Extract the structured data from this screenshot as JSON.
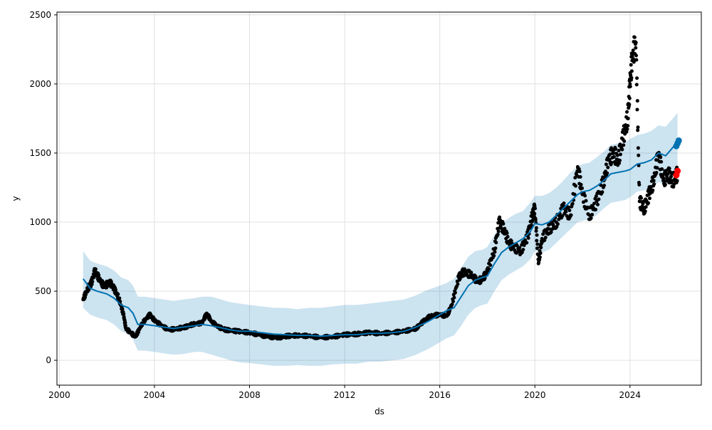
{
  "chart_data": {
    "type": "line",
    "title": "",
    "xlabel": "ds",
    "ylabel": "y",
    "xlim": [
      1999.9,
      2027.0
    ],
    "ylim": [
      -180,
      2520
    ],
    "grid": true,
    "x_ticks": [
      2000,
      2004,
      2008,
      2012,
      2016,
      2020,
      2024
    ],
    "x_tick_labels": [
      "2000",
      "2004",
      "2008",
      "2012",
      "2016",
      "2020",
      "2024"
    ],
    "y_ticks": [
      0,
      500,
      1000,
      1500,
      2000,
      2500
    ],
    "y_tick_labels": [
      "0",
      "500",
      "1000",
      "1500",
      "2000",
      "2500"
    ],
    "colors": {
      "forecast": "#0072B2",
      "interval": "#0072B2",
      "observed": "#000000",
      "actual_marker": "#ff0000",
      "grid": "#e0e0e0"
    },
    "series": [
      {
        "type": "observed",
        "x": [
          2001.0,
          2001.2,
          2001.35,
          2001.5,
          2001.7,
          2001.9,
          2002.1,
          2002.3,
          2002.5,
          2002.7,
          2002.8,
          2003.0,
          2003.2,
          2003.5,
          2003.8,
          2004.0,
          2004.3,
          2004.6,
          2005.0,
          2005.3,
          2005.6,
          2006.0,
          2006.2,
          2006.4,
          2006.7,
          2007.0,
          2007.5,
          2008.0,
          2008.4,
          2008.8,
          2009.2,
          2009.6,
          2010.0,
          2010.5,
          2011.0,
          2011.5,
          2012.0,
          2012.5,
          2013.0,
          2013.5,
          2014.0,
          2014.5,
          2015.0,
          2015.3,
          2015.6,
          2016.0,
          2016.3,
          2016.5,
          2016.8,
          2017.0,
          2017.3,
          2017.6,
          2017.8,
          2018.0,
          2018.3,
          2018.5,
          2018.7,
          2018.9,
          2019.1,
          2019.4,
          2019.7,
          2019.9,
          2020.0,
          2020.15,
          2020.3,
          2020.6,
          2020.9,
          2021.2,
          2021.5,
          2021.8,
          2022.0,
          2022.3,
          2022.6,
          2022.9,
          2023.1,
          2023.3,
          2023.5,
          2023.7,
          2023.9,
          2024.0,
          2024.1,
          2024.25,
          2024.4,
          2024.6,
          2024.8,
          2025.0,
          2025.2,
          2025.4,
          2025.6,
          2025.8,
          2026.0
        ],
        "y": [
          440,
          520,
          560,
          650,
          580,
          530,
          570,
          520,
          450,
          330,
          230,
          200,
          170,
          270,
          330,
          290,
          250,
          220,
          230,
          240,
          260,
          270,
          340,
          280,
          240,
          220,
          210,
          200,
          185,
          170,
          165,
          175,
          180,
          175,
          165,
          170,
          185,
          190,
          200,
          195,
          200,
          210,
          230,
          280,
          320,
          330,
          320,
          400,
          600,
          640,
          620,
          570,
          590,
          640,
          800,
          1000,
          950,
          850,
          820,
          790,
          900,
          1050,
          1100,
          700,
          880,
          950,
          1000,
          1100,
          1050,
          1400,
          1200,
          1050,
          1150,
          1300,
          1450,
          1500,
          1450,
          1600,
          1750,
          2000,
          2200,
          2300,
          1150,
          1100,
          1200,
          1300,
          1500,
          1300,
          1350,
          1300,
          1350
        ]
      },
      {
        "type": "forecast",
        "x": [
          2001.0,
          2001.3,
          2001.6,
          2002.0,
          2002.3,
          2002.6,
          2002.9,
          2003.1,
          2003.3,
          2003.6,
          2004.0,
          2004.4,
          2004.8,
          2005.2,
          2005.7,
          2006.0,
          2006.4,
          2006.8,
          2007.2,
          2007.6,
          2008.0,
          2008.5,
          2009.0,
          2009.5,
          2010.0,
          2010.5,
          2011.0,
          2011.5,
          2012.0,
          2012.5,
          2013.0,
          2013.5,
          2014.0,
          2014.5,
          2015.0,
          2015.5,
          2016.0,
          2016.3,
          2016.6,
          2016.9,
          2017.2,
          2017.5,
          2017.8,
          2018.0,
          2018.3,
          2018.6,
          2018.9,
          2019.2,
          2019.5,
          2019.8,
          2020.0,
          2020.3,
          2020.6,
          2020.9,
          2021.2,
          2021.5,
          2021.8,
          2022.0,
          2022.3,
          2022.6,
          2022.9,
          2023.2,
          2023.5,
          2023.8,
          2024.0,
          2024.3,
          2024.6,
          2024.9,
          2025.2,
          2025.5,
          2025.8,
          2026.0
        ],
        "y": [
          590,
          520,
          500,
          480,
          450,
          400,
          380,
          340,
          260,
          260,
          250,
          240,
          230,
          240,
          250,
          260,
          250,
          235,
          220,
          210,
          210,
          200,
          190,
          185,
          180,
          180,
          175,
          180,
          185,
          185,
          195,
          195,
          200,
          210,
          240,
          280,
          330,
          360,
          380,
          460,
          540,
          580,
          600,
          610,
          700,
          780,
          820,
          850,
          880,
          930,
          990,
          980,
          1000,
          1050,
          1100,
          1150,
          1200,
          1220,
          1230,
          1260,
          1300,
          1350,
          1360,
          1370,
          1380,
          1420,
          1430,
          1450,
          1500,
          1480,
          1540,
          1580
        ]
      },
      {
        "type": "interval",
        "x": [
          2001.0,
          2001.3,
          2001.6,
          2002.0,
          2002.3,
          2002.6,
          2002.9,
          2003.1,
          2003.3,
          2003.6,
          2004.0,
          2004.4,
          2004.8,
          2005.2,
          2005.7,
          2006.0,
          2006.4,
          2006.8,
          2007.2,
          2007.6,
          2008.0,
          2008.5,
          2009.0,
          2009.5,
          2010.0,
          2010.5,
          2011.0,
          2011.5,
          2012.0,
          2012.5,
          2013.0,
          2013.5,
          2014.0,
          2014.5,
          2015.0,
          2015.5,
          2016.0,
          2016.3,
          2016.6,
          2016.9,
          2017.2,
          2017.5,
          2017.8,
          2018.0,
          2018.3,
          2018.6,
          2018.9,
          2019.2,
          2019.5,
          2019.8,
          2020.0,
          2020.3,
          2020.6,
          2020.9,
          2021.2,
          2021.5,
          2021.8,
          2022.0,
          2022.3,
          2022.6,
          2022.9,
          2023.2,
          2023.5,
          2023.8,
          2024.0,
          2024.3,
          2024.6,
          2024.9,
          2025.2,
          2025.5,
          2025.8,
          2026.0
        ],
        "lower": [
          380,
          330,
          310,
          290,
          260,
          210,
          190,
          150,
          70,
          70,
          60,
          50,
          40,
          45,
          60,
          60,
          40,
          20,
          0,
          -15,
          -20,
          -30,
          -40,
          -40,
          -35,
          -40,
          -40,
          -30,
          -25,
          -25,
          -10,
          -10,
          0,
          10,
          40,
          80,
          130,
          160,
          180,
          250,
          330,
          380,
          400,
          410,
          500,
          580,
          620,
          650,
          680,
          730,
          790,
          780,
          800,
          850,
          900,
          950,
          1000,
          1010,
          1020,
          1050,
          1100,
          1140,
          1150,
          1160,
          1180,
          1220,
          1230,
          1250,
          1290,
          1270,
          1330,
          1370
        ],
        "upper": [
          790,
          720,
          700,
          680,
          650,
          600,
          580,
          540,
          460,
          460,
          450,
          440,
          430,
          440,
          450,
          460,
          460,
          440,
          420,
          410,
          400,
          390,
          380,
          380,
          370,
          380,
          380,
          390,
          400,
          400,
          410,
          420,
          430,
          440,
          470,
          510,
          540,
          560,
          590,
          670,
          750,
          790,
          800,
          820,
          910,
          990,
          1030,
          1060,
          1080,
          1140,
          1190,
          1190,
          1210,
          1250,
          1300,
          1360,
          1400,
          1420,
          1430,
          1470,
          1510,
          1560,
          1570,
          1580,
          1600,
          1630,
          1640,
          1660,
          1700,
          1690,
          1750,
          1790
        ]
      },
      {
        "type": "forecast_marker",
        "x": [
          2025.95,
          2026.0,
          2026.05
        ],
        "y": [
          1550,
          1570,
          1590
        ]
      },
      {
        "type": "actual_marker",
        "x": [
          2025.95,
          2026.0
        ],
        "y": [
          1340,
          1370
        ]
      }
    ]
  }
}
